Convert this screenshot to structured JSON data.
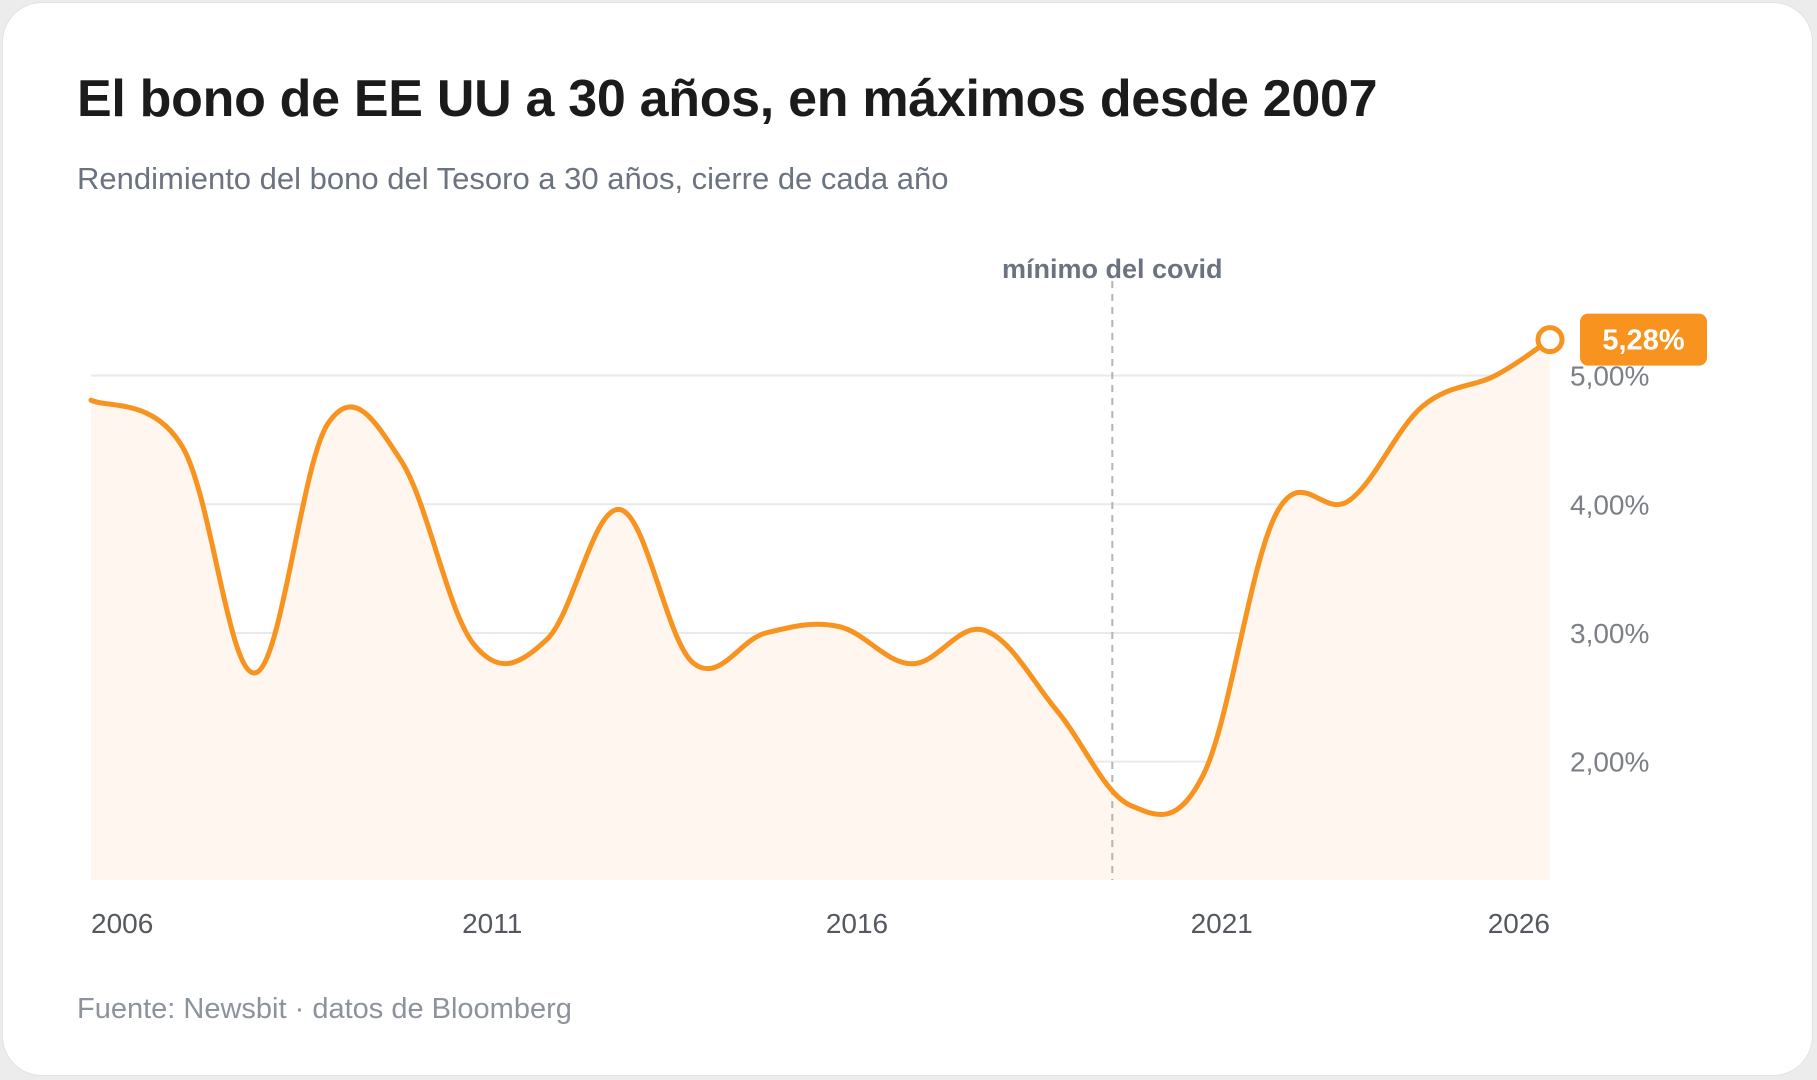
{
  "title": "El bono de EE UU a 30 años, en máximos desde 2007",
  "subtitle": "Rendimiento del bono del Tesoro a 30 años, cierre de cada año",
  "source": "Fuente: Newsbit · datos de Bloomberg",
  "colors": {
    "line": "#f7931e",
    "area": "#fef6ef",
    "grid": "#e9e9e9",
    "annotation": "#b5b5b5",
    "badge": "#f7931e"
  },
  "chart_data": {
    "type": "area",
    "x": [
      2005.5,
      2006.75,
      2007.75,
      2008.75,
      2009.75,
      2010.75,
      2011.75,
      2012.75,
      2013.75,
      2014.75,
      2015.75,
      2016.75,
      2017.75,
      2018.75,
      2019.75,
      2020.75,
      2021.75,
      2022.75,
      2023.75,
      2024.75,
      2025.5
    ],
    "values": [
      4.81,
      4.45,
      2.69,
      4.63,
      4.34,
      2.91,
      2.95,
      3.96,
      2.77,
      3.0,
      3.05,
      2.76,
      3.02,
      2.39,
      1.66,
      1.9,
      3.93,
      4.03,
      4.76,
      5.0,
      5.28
    ],
    "series": [
      {
        "values": [
          4.81,
          4.45,
          2.69,
          4.63,
          4.34,
          2.91,
          2.95,
          3.96,
          2.77,
          3.0,
          3.05,
          2.76,
          3.02,
          2.39,
          1.66,
          1.9,
          3.93,
          4.03,
          4.76,
          5.0,
          5.28
        ]
      }
    ],
    "x_ticks": [
      {
        "value": 2006,
        "label": "2006"
      },
      {
        "value": 2011,
        "label": "2011"
      },
      {
        "value": 2016,
        "label": "2016"
      },
      {
        "value": 2021,
        "label": "2021"
      },
      {
        "value": 2026,
        "label": "2026"
      }
    ],
    "y_ticks": [
      {
        "value": 2,
        "label": "2,00%"
      },
      {
        "value": 3,
        "label": "3,00%"
      },
      {
        "value": 4,
        "label": "4,00%"
      },
      {
        "value": 5,
        "label": "5,00%"
      }
    ],
    "xlim": [
      2005.5,
      2025.5
    ],
    "ylim": [
      1.08,
      5.86
    ],
    "grid": true,
    "annotation": {
      "x": 2019.5,
      "label": "mínimo del covid"
    },
    "last_value_label": "5,28%"
  }
}
